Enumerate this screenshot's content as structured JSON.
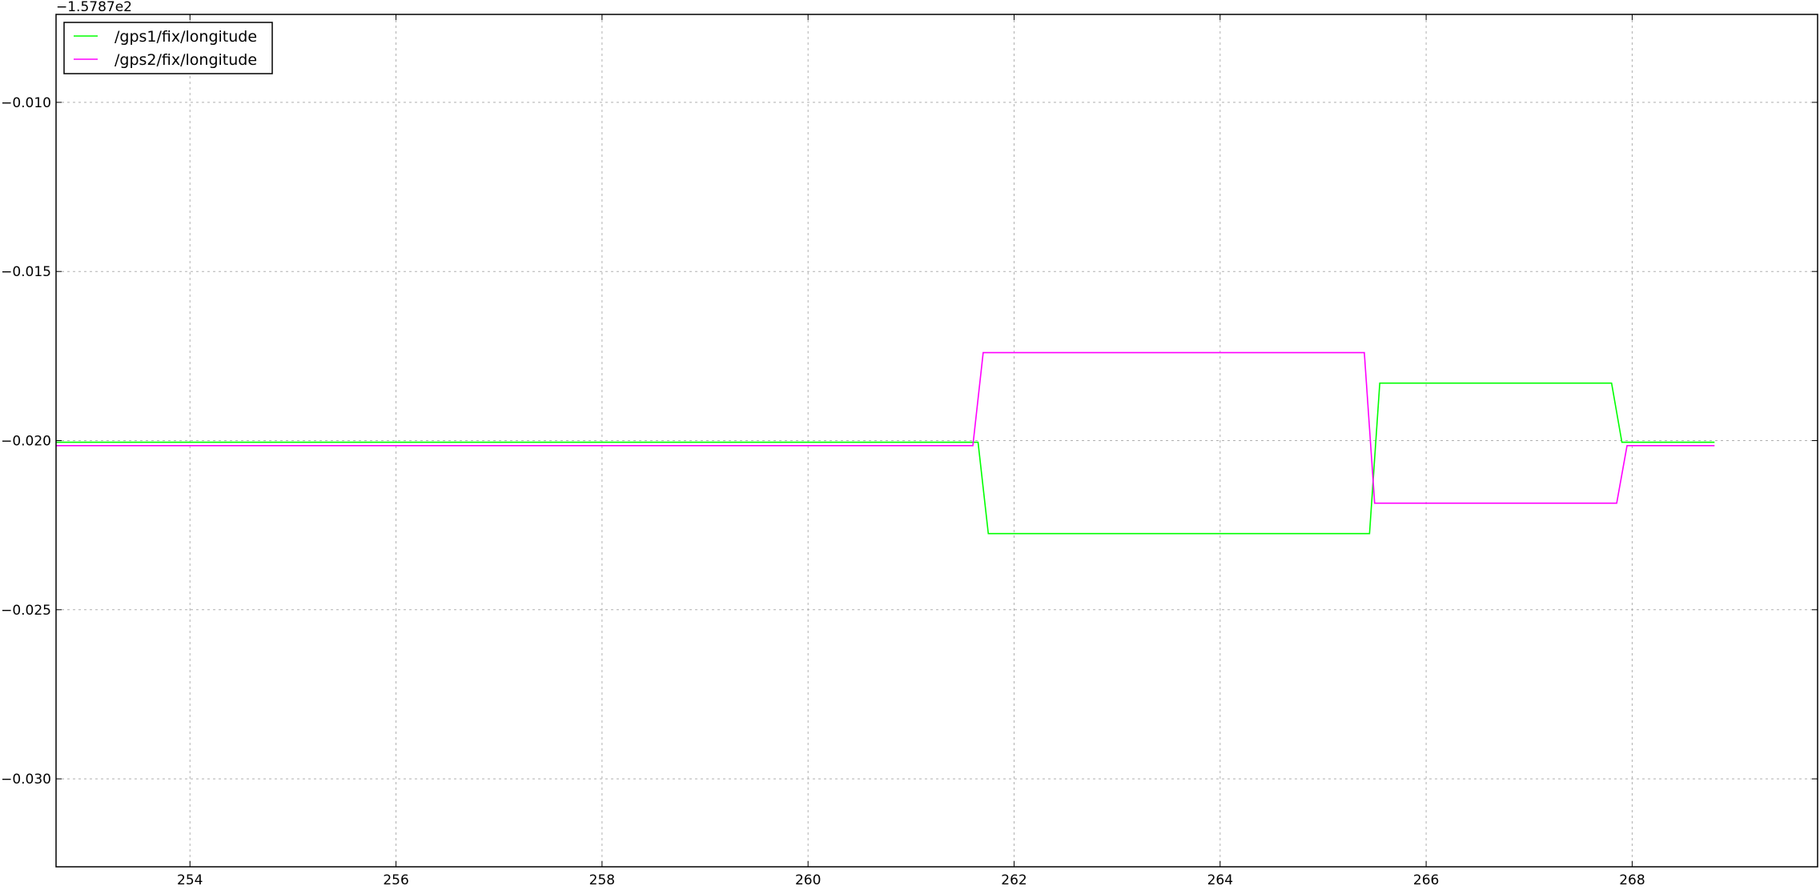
{
  "chart_data": {
    "type": "line",
    "title": "",
    "xlabel": "",
    "ylabel": "",
    "y_offset_label": "−1.5787e2",
    "xlim": [
      252.7,
      269.8
    ],
    "ylim": [
      -0.0326,
      -0.0074
    ],
    "x_ticks": [
      254,
      256,
      258,
      260,
      262,
      264,
      266,
      268
    ],
    "x_tick_labels": [
      "254",
      "256",
      "258",
      "260",
      "262",
      "264",
      "266",
      "268"
    ],
    "y_ticks": [
      -0.01,
      -0.015,
      -0.02,
      -0.025,
      -0.03
    ],
    "y_tick_labels": [
      "−0.010",
      "−0.015",
      "−0.020",
      "−0.025",
      "−0.030"
    ],
    "grid": true,
    "legend_position": "top-left",
    "series": [
      {
        "name": "/gps1/fix/longitude",
        "color": "#00ff00",
        "x": [
          252.7,
          261.65,
          261.75,
          265.45,
          265.55,
          267.8,
          267.9,
          268.8
        ],
        "y": [
          -0.02005,
          -0.02005,
          -0.02275,
          -0.02275,
          -0.0183,
          -0.0183,
          -0.02005,
          -0.02005
        ]
      },
      {
        "name": "/gps2/fix/longitude",
        "color": "#ff00ff",
        "x": [
          252.7,
          261.6,
          261.7,
          265.4,
          265.5,
          267.85,
          267.95,
          268.8
        ],
        "y": [
          -0.02015,
          -0.02015,
          -0.0174,
          -0.0174,
          -0.02185,
          -0.02185,
          -0.02015,
          -0.02015
        ]
      }
    ]
  }
}
